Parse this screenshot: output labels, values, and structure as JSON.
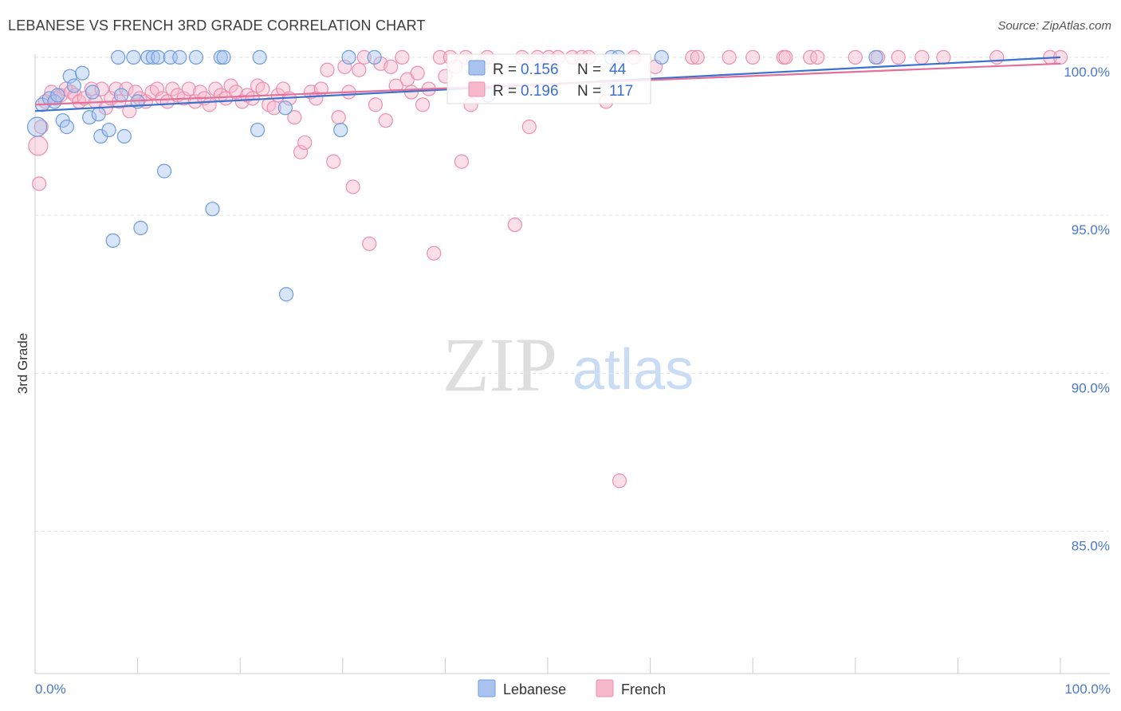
{
  "title": "LEBANESE VS FRENCH 3RD GRADE CORRELATION CHART",
  "source": "Source: ZipAtlas.com",
  "watermark": {
    "zip": "ZIP",
    "atlas": "atlas"
  },
  "colors": {
    "lebanese_fill": "#a9c3ee",
    "lebanese_stroke": "#6e9be0",
    "lebanese_line": "#3a72d0",
    "french_fill": "#f6b8cb",
    "french_stroke": "#ec8fae",
    "french_line": "#e37099",
    "tick_text": "#4a78c8",
    "grid": "#dde3ec"
  },
  "chart_data": {
    "type": "scatter",
    "title": "LEBANESE VS FRENCH 3RD GRADE CORRELATION CHART",
    "xlabel": "",
    "ylabel": "3rd Grade",
    "xlim": [
      0,
      100
    ],
    "ylim": [
      80.5,
      100.3
    ],
    "x_tick_labels": [
      {
        "value": 0,
        "label": "0.0%"
      },
      {
        "value": 100,
        "label": "100.0%"
      }
    ],
    "y_tick_labels": [
      {
        "value": 100,
        "label": "100.0%"
      },
      {
        "value": 95,
        "label": "95.0%"
      },
      {
        "value": 90,
        "label": "90.0%"
      },
      {
        "value": 85,
        "label": "85.0%"
      }
    ],
    "grid": true,
    "legend": {
      "placement": "bottom-center",
      "entries": [
        "Lebanese",
        "French"
      ]
    },
    "stats": [
      {
        "series": "Lebanese",
        "r_label": "R =",
        "r_value": "0.156",
        "n_label": "N =",
        "n_value": "44"
      },
      {
        "series": "French",
        "r_label": "R =",
        "r_value": "0.196",
        "n_label": "N =",
        "n_value": "117"
      }
    ],
    "series": [
      {
        "name": "Lebanese",
        "trend": {
          "x": [
            0,
            100
          ],
          "y": [
            98.3,
            100.0
          ]
        },
        "points": [
          [
            0.2,
            97.8
          ],
          [
            0.7,
            98.5
          ],
          [
            1.4,
            98.7
          ],
          [
            1.9,
            98.6
          ],
          [
            2.2,
            98.8
          ],
          [
            2.7,
            98.0
          ],
          [
            3.1,
            97.8
          ],
          [
            3.4,
            99.4
          ],
          [
            3.8,
            99.1
          ],
          [
            4.6,
            99.5
          ],
          [
            5.3,
            98.1
          ],
          [
            5.6,
            98.9
          ],
          [
            6.2,
            98.2
          ],
          [
            6.4,
            97.5
          ],
          [
            7.2,
            97.7
          ],
          [
            7.6,
            94.2
          ],
          [
            8.1,
            100.0
          ],
          [
            8.4,
            98.8
          ],
          [
            8.7,
            97.5
          ],
          [
            9.6,
            100.0
          ],
          [
            10.0,
            98.6
          ],
          [
            10.3,
            94.6
          ],
          [
            11.0,
            100.0
          ],
          [
            11.5,
            100.0
          ],
          [
            12.0,
            100.0
          ],
          [
            12.6,
            96.4
          ],
          [
            13.2,
            100.0
          ],
          [
            14.1,
            100.0
          ],
          [
            15.7,
            100.0
          ],
          [
            17.3,
            95.2
          ],
          [
            18.1,
            100.0
          ],
          [
            18.4,
            100.0
          ],
          [
            21.7,
            97.7
          ],
          [
            21.9,
            100.0
          ],
          [
            24.4,
            98.4
          ],
          [
            24.5,
            92.5
          ],
          [
            29.8,
            97.7
          ],
          [
            30.6,
            100.0
          ],
          [
            33.1,
            100.0
          ],
          [
            44.2,
            98.8
          ],
          [
            56.2,
            100.0
          ],
          [
            56.9,
            100.0
          ],
          [
            61.1,
            100.0
          ],
          [
            82.0,
            100.0
          ]
        ]
      },
      {
        "name": "French",
        "trend": {
          "x": [
            0,
            100
          ],
          "y": [
            98.5,
            99.8
          ]
        },
        "points": [
          [
            0.3,
            97.2
          ],
          [
            0.4,
            96.0
          ],
          [
            0.6,
            97.8
          ],
          [
            1.0,
            98.6
          ],
          [
            1.6,
            98.9
          ],
          [
            2.0,
            98.7
          ],
          [
            2.5,
            98.8
          ],
          [
            3.0,
            99.0
          ],
          [
            3.5,
            98.9
          ],
          [
            3.9,
            98.8
          ],
          [
            4.3,
            98.6
          ],
          [
            4.8,
            98.7
          ],
          [
            5.5,
            99.0
          ],
          [
            5.9,
            98.6
          ],
          [
            6.5,
            99.0
          ],
          [
            6.9,
            98.4
          ],
          [
            7.4,
            98.7
          ],
          [
            7.9,
            99.0
          ],
          [
            8.2,
            98.6
          ],
          [
            8.9,
            99.0
          ],
          [
            9.2,
            98.3
          ],
          [
            9.8,
            98.9
          ],
          [
            10.2,
            98.7
          ],
          [
            10.8,
            98.6
          ],
          [
            11.4,
            98.9
          ],
          [
            11.9,
            99.0
          ],
          [
            12.4,
            98.7
          ],
          [
            12.9,
            98.6
          ],
          [
            13.4,
            99.0
          ],
          [
            13.9,
            98.8
          ],
          [
            14.5,
            98.7
          ],
          [
            15.0,
            99.0
          ],
          [
            15.6,
            98.6
          ],
          [
            16.1,
            98.9
          ],
          [
            16.5,
            98.7
          ],
          [
            17.0,
            98.5
          ],
          [
            17.6,
            99.0
          ],
          [
            18.1,
            98.8
          ],
          [
            18.6,
            98.7
          ],
          [
            19.1,
            99.1
          ],
          [
            19.6,
            98.9
          ],
          [
            20.2,
            98.6
          ],
          [
            20.7,
            98.8
          ],
          [
            21.2,
            98.7
          ],
          [
            21.7,
            99.1
          ],
          [
            22.2,
            99.0
          ],
          [
            22.8,
            98.5
          ],
          [
            23.3,
            98.4
          ],
          [
            23.7,
            98.8
          ],
          [
            24.2,
            99.0
          ],
          [
            24.8,
            98.7
          ],
          [
            25.3,
            98.1
          ],
          [
            25.9,
            97.0
          ],
          [
            26.3,
            97.3
          ],
          [
            26.9,
            98.9
          ],
          [
            27.4,
            98.7
          ],
          [
            27.9,
            99.0
          ],
          [
            28.5,
            99.6
          ],
          [
            29.1,
            96.7
          ],
          [
            29.6,
            98.1
          ],
          [
            30.2,
            99.7
          ],
          [
            30.6,
            98.9
          ],
          [
            31.0,
            95.9
          ],
          [
            31.6,
            99.6
          ],
          [
            32.1,
            100.0
          ],
          [
            32.6,
            94.1
          ],
          [
            33.2,
            98.5
          ],
          [
            33.7,
            99.8
          ],
          [
            34.2,
            98.0
          ],
          [
            34.7,
            99.7
          ],
          [
            35.2,
            99.1
          ],
          [
            35.8,
            100.0
          ],
          [
            36.3,
            99.3
          ],
          [
            36.7,
            98.9
          ],
          [
            37.3,
            99.5
          ],
          [
            37.8,
            98.5
          ],
          [
            38.4,
            99.0
          ],
          [
            38.9,
            93.8
          ],
          [
            39.5,
            100.0
          ],
          [
            40.0,
            99.4
          ],
          [
            40.5,
            100.0
          ],
          [
            41.0,
            99.7
          ],
          [
            41.6,
            96.7
          ],
          [
            42.0,
            100.0
          ],
          [
            42.5,
            98.5
          ],
          [
            43.1,
            99.6
          ],
          [
            43.6,
            99.8
          ],
          [
            44.1,
            100.0
          ],
          [
            46.8,
            94.7
          ],
          [
            47.5,
            100.0
          ],
          [
            48.2,
            97.8
          ],
          [
            49.0,
            100.0
          ],
          [
            50.1,
            100.0
          ],
          [
            51.0,
            100.0
          ],
          [
            52.4,
            100.0
          ],
          [
            53.3,
            100.0
          ],
          [
            54.0,
            100.0
          ],
          [
            55.7,
            98.6
          ],
          [
            57.0,
            86.6
          ],
          [
            58.4,
            100.0
          ],
          [
            60.5,
            99.7
          ],
          [
            64.1,
            100.0
          ],
          [
            64.6,
            100.0
          ],
          [
            67.7,
            100.0
          ],
          [
            70.0,
            100.0
          ],
          [
            73.0,
            100.0
          ],
          [
            73.2,
            100.0
          ],
          [
            75.6,
            100.0
          ],
          [
            76.3,
            100.0
          ],
          [
            80.0,
            100.0
          ],
          [
            82.2,
            100.0
          ],
          [
            84.2,
            100.0
          ],
          [
            86.5,
            100.0
          ],
          [
            88.6,
            100.0
          ],
          [
            93.8,
            100.0
          ],
          [
            99.0,
            100.0
          ],
          [
            100.0,
            100.0
          ]
        ]
      }
    ]
  }
}
